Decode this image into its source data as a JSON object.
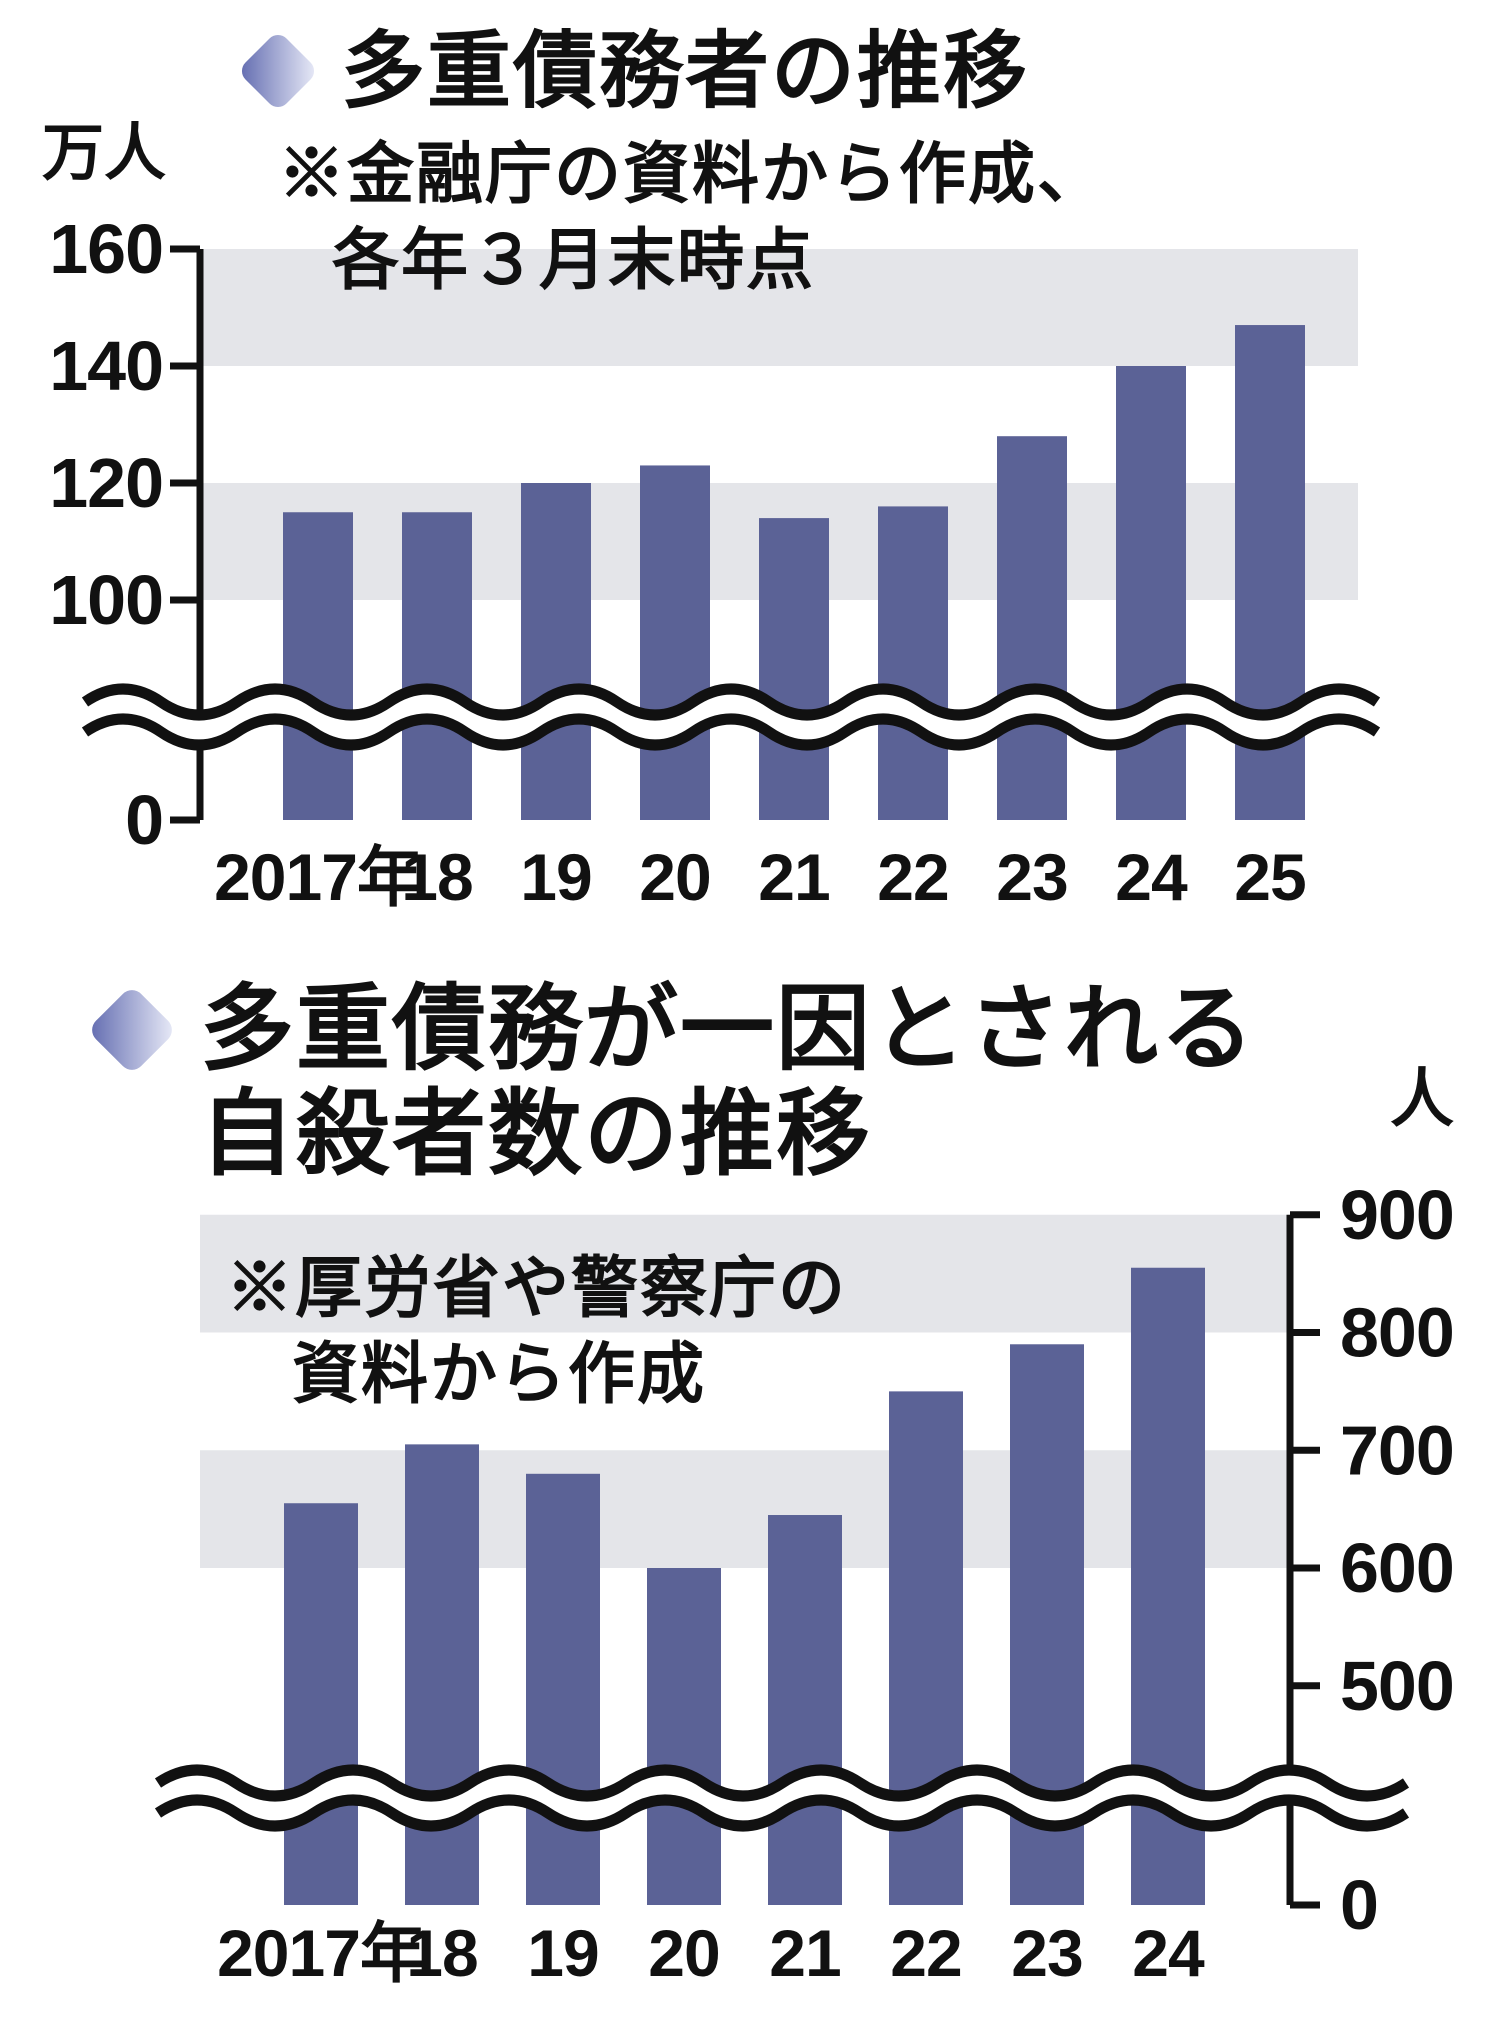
{
  "colors": {
    "bar": "#5b6296",
    "band": "#e4e5e9",
    "axis": "#111111",
    "text": "#111111",
    "diamond_dark": "#5e68ae",
    "diamond_light": "#edeffa",
    "background": "#ffffff"
  },
  "charts": [
    {
      "title_lines": [
        "多重債務者の推移"
      ],
      "unit_label": "万人",
      "notes": [
        "※金融庁の資料から作成、",
        "各年３月末時点"
      ],
      "chart_data": {
        "type": "bar",
        "categories": [
          "2017年",
          "18",
          "19",
          "20",
          "21",
          "22",
          "23",
          "24",
          "25"
        ],
        "values": [
          115,
          115,
          120,
          123,
          114,
          116,
          128,
          140,
          147
        ],
        "title": "多重債務者の推移",
        "ylabel": "万人",
        "yticks": [
          160,
          140,
          120,
          100
        ],
        "zero_label": "0",
        "ylim": [
          0,
          160
        ],
        "broken_axis": true,
        "axis_side": "left",
        "shaded_bands": [
          [
            140,
            160
          ],
          [
            100,
            120
          ]
        ],
        "grid": false,
        "legend": "none"
      }
    },
    {
      "title_lines": [
        "多重債務が一因とされる",
        "自殺者数の推移"
      ],
      "unit_label": "人",
      "notes": [
        "※厚労省や警察庁の",
        "資料から作成"
      ],
      "chart_data": {
        "type": "bar",
        "categories": [
          "2017年",
          "18",
          "19",
          "20",
          "21",
          "22",
          "23",
          "24"
        ],
        "values": [
          655,
          705,
          680,
          600,
          645,
          750,
          790,
          855
        ],
        "title": "多重債務が一因とされる自殺者数の推移",
        "ylabel": "人",
        "yticks": [
          900,
          800,
          700,
          600,
          500
        ],
        "zero_label": "0",
        "ylim": [
          0,
          900
        ],
        "broken_axis": true,
        "axis_side": "right",
        "shaded_bands": [
          [
            800,
            900
          ],
          [
            600,
            700
          ]
        ],
        "grid": false,
        "legend": "none"
      }
    }
  ]
}
